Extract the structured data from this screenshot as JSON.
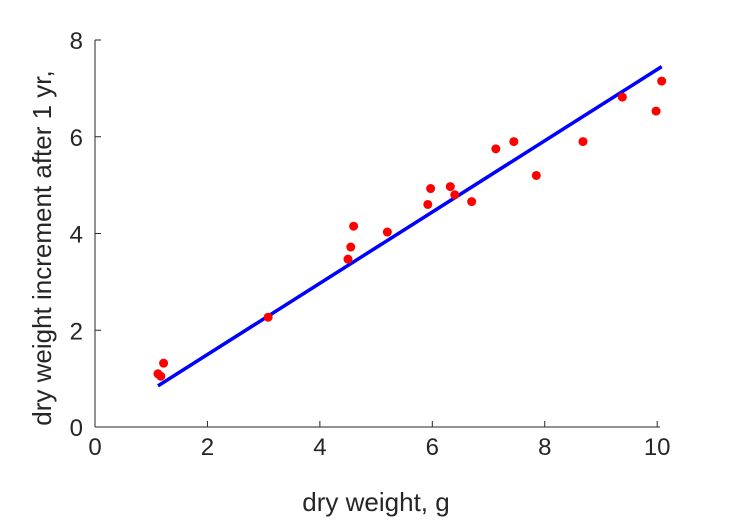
{
  "chart_data": {
    "type": "scatter",
    "xlabel": "dry weight, g",
    "ylabel": "dry weight increment after 1 yr,",
    "xlim": [
      0,
      10.05
    ],
    "ylim": [
      0,
      8
    ],
    "x_ticks": [
      "0",
      "2",
      "4",
      "6",
      "8",
      "10"
    ],
    "y_ticks": [
      "0",
      "2",
      "4",
      "6",
      "8"
    ],
    "grid": false,
    "series": [
      {
        "type": "scatter",
        "color": "#ff0000",
        "points": [
          [
            1.12,
            1.1
          ],
          [
            1.17,
            1.05
          ],
          [
            1.22,
            1.32
          ],
          [
            3.08,
            2.27
          ],
          [
            4.5,
            3.47
          ],
          [
            4.55,
            3.72
          ],
          [
            4.6,
            4.15
          ],
          [
            5.2,
            4.03
          ],
          [
            5.92,
            4.6
          ],
          [
            5.97,
            4.93
          ],
          [
            6.32,
            4.97
          ],
          [
            6.4,
            4.8
          ],
          [
            6.7,
            4.66
          ],
          [
            7.13,
            5.75
          ],
          [
            7.45,
            5.9
          ],
          [
            7.85,
            5.2
          ],
          [
            8.68,
            5.9
          ],
          [
            9.38,
            6.82
          ],
          [
            9.98,
            6.53
          ],
          [
            10.08,
            7.15
          ]
        ]
      },
      {
        "type": "line",
        "color": "#0000ff",
        "points": [
          [
            1.12,
            0.85
          ],
          [
            10.08,
            7.45
          ]
        ]
      }
    ]
  }
}
